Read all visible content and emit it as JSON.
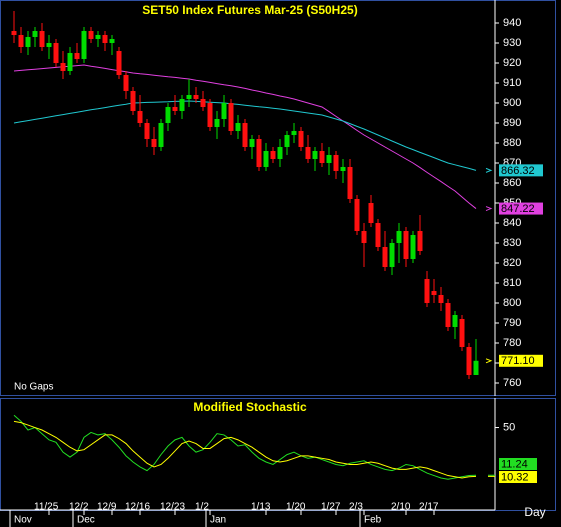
{
  "chart_data": [
    {
      "type": "candlestick",
      "title": "SET50  Index  Futures  Mar-25  (S50H25)",
      "note": "No  Gaps",
      "open": [
        936,
        934,
        928,
        933,
        936,
        928,
        930,
        920,
        916,
        925,
        922,
        936,
        932,
        934,
        930,
        926,
        914,
        906,
        896,
        890,
        882,
        878,
        890,
        898,
        896,
        902,
        904,
        902,
        900,
        888,
        892,
        900,
        886,
        890,
        878,
        882,
        868,
        876,
        872,
        878,
        884,
        886,
        878,
        872,
        876,
        870,
        874,
        866,
        868,
        852,
        836,
        850,
        840,
        828,
        818,
        830,
        836,
        822,
        836,
        812,
        806,
        804,
        800,
        788,
        792,
        778,
        764
      ],
      "high": [
        946,
        938,
        936,
        938,
        940,
        934,
        932,
        926,
        928,
        930,
        938,
        938,
        936,
        936,
        934,
        928,
        916,
        908,
        904,
        892,
        888,
        892,
        900,
        904,
        904,
        912,
        908,
        906,
        902,
        896,
        904,
        902,
        894,
        892,
        884,
        884,
        880,
        878,
        882,
        886,
        890,
        888,
        884,
        878,
        880,
        878,
        876,
        872,
        872,
        854,
        840,
        854,
        842,
        836,
        832,
        840,
        838,
        836,
        844,
        816,
        812,
        808,
        802,
        796,
        794,
        780,
        782
      ],
      "low": [
        930,
        925,
        924,
        928,
        926,
        922,
        918,
        912,
        914,
        920,
        920,
        930,
        928,
        926,
        924,
        912,
        902,
        894,
        888,
        878,
        874,
        876,
        886,
        894,
        892,
        898,
        900,
        896,
        886,
        882,
        888,
        884,
        882,
        876,
        872,
        866,
        866,
        870,
        868,
        874,
        880,
        876,
        870,
        866,
        868,
        864,
        862,
        860,
        850,
        834,
        818,
        838,
        826,
        816,
        814,
        820,
        818,
        820,
        824,
        798,
        800,
        796,
        786,
        782,
        776,
        762,
        764
      ],
      "close": [
        934,
        928,
        933,
        936,
        928,
        930,
        920,
        916,
        925,
        922,
        936,
        932,
        934,
        930,
        932,
        914,
        906,
        896,
        890,
        882,
        878,
        890,
        898,
        896,
        902,
        904,
        902,
        898,
        888,
        892,
        900,
        886,
        890,
        878,
        882,
        868,
        876,
        872,
        878,
        884,
        886,
        878,
        872,
        876,
        870,
        874,
        866,
        868,
        852,
        836,
        830,
        840,
        828,
        818,
        830,
        836,
        822,
        834,
        826,
        800,
        804,
        800,
        788,
        794,
        778,
        764,
        771.1
      ],
      "close_tag": "771.10",
      "up_color": "#00dd00",
      "down_color": "#ff1010",
      "tag_color": "#ffff00",
      "overlays": [
        {
          "color": "#e040e0",
          "values": [
            916,
            916.3,
            916.6,
            916.9,
            917.2,
            917.5,
            917.8,
            918.1,
            918.4,
            918.7,
            919,
            918.4,
            917.9,
            917.3,
            916.7,
            916.1,
            915.6,
            915,
            914.6,
            914.3,
            913.9,
            913.5,
            913.1,
            912.8,
            912.4,
            912,
            911.4,
            910.9,
            910.3,
            909.7,
            909.1,
            908.6,
            908,
            907.3,
            906.5,
            905.8,
            905,
            904.3,
            903.5,
            902.8,
            902,
            901,
            900,
            899,
            898,
            895.7,
            893.3,
            891,
            888.7,
            886.3,
            884,
            882,
            880,
            878,
            876,
            874,
            872,
            870,
            867.7,
            865.3,
            863,
            860.7,
            858.3,
            856,
            853,
            850,
            847.22
          ]
        },
        {
          "color": "#20c8d0",
          "values": [
            890,
            890.6,
            891.2,
            891.8,
            892.4,
            893,
            893.6,
            894.2,
            894.8,
            895.4,
            896,
            896.6,
            897.1,
            897.7,
            898.3,
            898.9,
            899.4,
            900,
            900.1,
            900.3,
            900.4,
            900.5,
            900.6,
            900.8,
            900.9,
            901,
            900.8,
            900.6,
            900.4,
            900.2,
            900,
            899.6,
            899.3,
            898.9,
            898.5,
            898.1,
            897.8,
            897.4,
            897,
            896.5,
            896,
            895.5,
            895,
            894.5,
            894,
            893,
            892,
            891,
            889.7,
            888.3,
            887,
            885.5,
            884,
            882.5,
            881,
            879.5,
            878,
            876.7,
            875.3,
            874,
            872.7,
            871.3,
            870,
            869.1,
            868.2,
            867.3,
            866.32
          ]
        }
      ],
      "ylim": [
        754,
        951.5
      ],
      "yticks": [
        760,
        770,
        780,
        790,
        800,
        810,
        820,
        830,
        840,
        850,
        860,
        870,
        880,
        890,
        900,
        910,
        920,
        930,
        940
      ],
      "grid": false
    },
    {
      "type": "line",
      "title": "Modified  Stochastic",
      "x_label": "Day",
      "categories": [
        null,
        null,
        null,
        null,
        null,
        "11/25",
        null,
        null,
        null,
        null,
        "12/2",
        null,
        null,
        null,
        "12/9",
        null,
        null,
        null,
        "12/16",
        null,
        null,
        null,
        null,
        "12/23",
        null,
        null,
        null,
        null,
        "1/2",
        null,
        null,
        null,
        null,
        null,
        null,
        null,
        "1/13",
        null,
        null,
        null,
        null,
        "1/20",
        null,
        null,
        null,
        null,
        "1/27",
        null,
        null,
        null,
        "2/3",
        null,
        null,
        null,
        null,
        null,
        "2/10",
        null,
        null,
        null,
        "2/17",
        null,
        null,
        null,
        null,
        null,
        null
      ],
      "months": [
        "Nov",
        null,
        null,
        null,
        null,
        null,
        null,
        null,
        null,
        "Dec",
        null,
        null,
        null,
        null,
        null,
        null,
        null,
        null,
        null,
        null,
        null,
        null,
        null,
        null,
        null,
        null,
        null,
        null,
        "Jan",
        null,
        null,
        null,
        null,
        null,
        null,
        null,
        null,
        null,
        null,
        null,
        null,
        null,
        null,
        null,
        null,
        null,
        null,
        null,
        null,
        null,
        "Feb",
        null,
        null,
        null,
        null,
        null,
        null,
        null,
        null,
        null,
        null,
        null,
        null,
        null,
        null,
        null,
        null
      ],
      "series": [
        {
          "color": "#22dd22",
          "values": [
            60,
            55,
            48,
            50,
            45,
            40,
            38,
            30,
            26,
            30,
            42,
            46,
            44,
            45,
            40,
            34,
            27,
            22,
            18,
            15,
            20,
            28,
            35,
            40,
            42,
            35,
            30,
            32,
            38,
            45,
            44,
            40,
            35,
            36,
            30,
            25,
            22,
            20,
            24,
            28,
            30,
            27,
            25,
            26,
            24,
            22,
            20,
            19,
            21,
            22,
            23,
            20,
            18,
            16,
            15,
            17,
            20,
            19,
            16,
            13,
            11,
            9,
            8,
            9,
            10,
            11,
            11.24
          ]
        },
        {
          "color": "#ffff00",
          "values": [
            55,
            54,
            52,
            50,
            48,
            45,
            42,
            38,
            34,
            31,
            32,
            36,
            40,
            44,
            44,
            41,
            37,
            31,
            26,
            21,
            18,
            20,
            25,
            31,
            37,
            39,
            37,
            33,
            33,
            37,
            41,
            42,
            40,
            37,
            34,
            30,
            26,
            23,
            22,
            23,
            25,
            27,
            27,
            26,
            25,
            24,
            22,
            21,
            20,
            20,
            21,
            22,
            21,
            19,
            17,
            16,
            16,
            17,
            18,
            17,
            15,
            13,
            11,
            10,
            9,
            10,
            10.32
          ]
        }
      ],
      "ylim": [
        -17,
        74
      ],
      "yticks": [
        50
      ]
    }
  ]
}
